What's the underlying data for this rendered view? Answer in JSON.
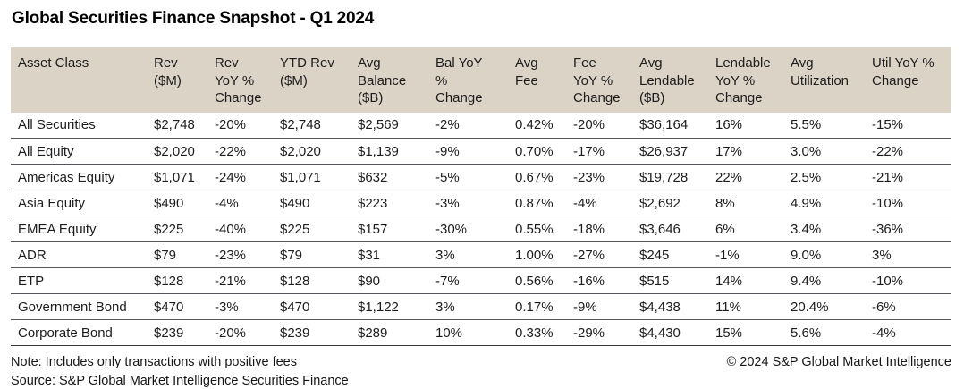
{
  "title": "Global Securities Finance Snapshot - Q1 2024",
  "table": {
    "columns": [
      "Asset Class",
      "Rev ($M)",
      "Rev YoY % Change",
      "YTD Rev ($M)",
      "Avg Balance ($B)",
      "Bal YoY % Change",
      "Avg Fee",
      "Fee YoY % Change",
      "Avg Lendable ($B)",
      "Lendable YoY % Change",
      "Avg Utilization",
      "Util YoY % Change"
    ],
    "rows": [
      [
        "All Securities",
        "$2,748",
        "-20%",
        "$2,748",
        "$2,569",
        "-2%",
        "0.42%",
        "-20%",
        "$36,164",
        "16%",
        "5.5%",
        "-15%"
      ],
      [
        "All Equity",
        "$2,020",
        "-22%",
        "$2,020",
        "$1,139",
        "-9%",
        "0.70%",
        "-17%",
        "$26,937",
        "17%",
        "3.0%",
        "-22%"
      ],
      [
        "Americas Equity",
        "$1,071",
        "-24%",
        "$1,071",
        "$632",
        "-5%",
        "0.67%",
        "-23%",
        "$19,728",
        "22%",
        "2.5%",
        "-21%"
      ],
      [
        "Asia Equity",
        "$490",
        "-4%",
        "$490",
        "$223",
        "-3%",
        "0.87%",
        "-4%",
        "$2,692",
        "8%",
        "4.9%",
        "-10%"
      ],
      [
        "EMEA Equity",
        "$225",
        "-40%",
        "$225",
        "$157",
        "-30%",
        "0.55%",
        "-18%",
        "$3,646",
        "6%",
        "3.4%",
        "-36%"
      ],
      [
        "ADR",
        "$79",
        "-23%",
        "$79",
        "$31",
        "3%",
        "1.00%",
        "-27%",
        "$245",
        "-1%",
        "9.0%",
        "3%"
      ],
      [
        "ETP",
        "$128",
        "-21%",
        "$128",
        "$90",
        "-7%",
        "0.56%",
        "-16%",
        "$515",
        "14%",
        "9.4%",
        "-10%"
      ],
      [
        "Government Bond",
        "$470",
        "-3%",
        "$470",
        "$1,122",
        "3%",
        "0.17%",
        "-9%",
        "$4,438",
        "11%",
        "20.4%",
        "-6%"
      ],
      [
        "Corporate Bond",
        "$239",
        "-20%",
        "$239",
        "$289",
        "10%",
        "0.33%",
        "-29%",
        "$4,430",
        "15%",
        "5.6%",
        "-4%"
      ]
    ]
  },
  "footer": {
    "note": "Note: Includes only transactions with positive fees",
    "source": "Source: S&P Global Market Intelligence Securities Finance",
    "copyright": "© 2024 S&P Global Market Intelligence"
  },
  "colors": {
    "header_background": "#dad3c6",
    "row_divider": "#54545a",
    "text": "#1d1d1d"
  }
}
